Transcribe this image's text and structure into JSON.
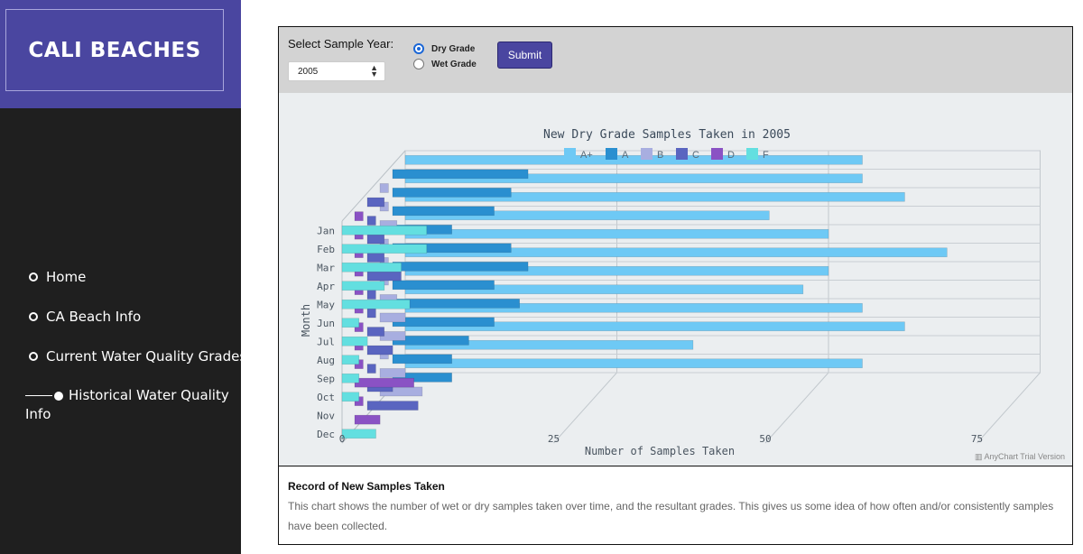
{
  "sidebar": {
    "brand": "CALI BEACHES",
    "nav": [
      {
        "label": "Home"
      },
      {
        "label": "CA Beach Info"
      },
      {
        "label": "Current Water Quality Grades"
      }
    ],
    "active": {
      "label": "Historical Water Quality Info"
    }
  },
  "controls": {
    "year_label": "Select Sample Year:",
    "year_value": "2005",
    "radio_dry": "Dry Grade",
    "radio_wet": "Wet Grade",
    "selected": "Dry Grade",
    "submit_label": "Submit"
  },
  "chart_data": {
    "type": "bar",
    "orientation": "horizontal",
    "title": "New Dry Grade Samples Taken in 2005",
    "ylabel": "Month",
    "xlabel": "Number of Samples Taken",
    "xlim": [
      0,
      75
    ],
    "xticks": [
      0,
      25,
      50,
      75
    ],
    "categories": [
      "Jan",
      "Feb",
      "Mar",
      "Apr",
      "May",
      "Jun",
      "Jul",
      "Aug",
      "Sep",
      "Oct",
      "Nov",
      "Dec"
    ],
    "series": [
      {
        "name": "A+",
        "color": "#6ec9f5",
        "values": [
          54,
          54,
          59,
          43,
          50,
          64,
          50,
          47,
          54,
          59,
          34,
          54
        ]
      },
      {
        "name": "A",
        "color": "#2a8fd0",
        "values": [
          16,
          14,
          12,
          7,
          14,
          16,
          12,
          15,
          12,
          9,
          7,
          7
        ]
      },
      {
        "name": "B",
        "color": "#a8aee0",
        "values": [
          1,
          1,
          2,
          1,
          1,
          1,
          2,
          3,
          3,
          1,
          3,
          5
        ]
      },
      {
        "name": "C",
        "color": "#5a65c0",
        "values": [
          2,
          1,
          2,
          2,
          4,
          1,
          1,
          2,
          3,
          1,
          3,
          6
        ]
      },
      {
        "name": "D",
        "color": "#8a52c4",
        "values": [
          1,
          1,
          1,
          1,
          1,
          1,
          1,
          1,
          1,
          7,
          1,
          3
        ]
      },
      {
        "name": "F",
        "color": "#63dfe0",
        "values": [
          10,
          10,
          7,
          5,
          8,
          2,
          3,
          2,
          2,
          2,
          0,
          4
        ]
      }
    ],
    "legend_position": "top",
    "grid": true,
    "credit": "AnyChart Trial Version"
  },
  "info": {
    "title": "Record of New Samples Taken",
    "text": "This chart shows the number of wet or dry samples taken over time, and the resultant grades. This gives us some idea of how often and/or consistently samples have been collected."
  }
}
